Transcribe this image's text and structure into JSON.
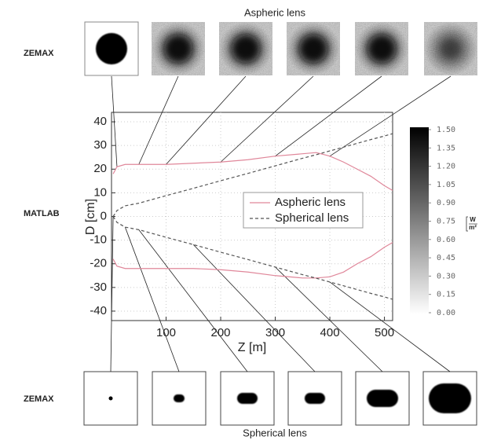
{
  "title_top": "Aspheric lens",
  "title_bottom": "Spherical lens",
  "row_labels": [
    "ZEMAX",
    "MATLAB",
    "ZEMAX"
  ],
  "chart_data": {
    "type": "line",
    "x_label": "Z [m]",
    "y_label": "D [cm]",
    "x": [
      3,
      10,
      25,
      50,
      100,
      150,
      200,
      250,
      300,
      350,
      375,
      400,
      425,
      450,
      475,
      500,
      515
    ],
    "series": [
      {
        "name": "Aspheric lens",
        "color": "#e0879a",
        "style": "solid",
        "upper": [
          18,
          21,
          22,
          22,
          22,
          22.5,
          23,
          24,
          25.5,
          26.5,
          27,
          25.5,
          23,
          20,
          17,
          13,
          11
        ],
        "lower": [
          -18,
          -21,
          -22,
          -22,
          -22,
          -22,
          -22.5,
          -23.5,
          -25,
          -26,
          -26,
          -25.5,
          -23.5,
          -20,
          -17,
          -13,
          -11
        ]
      },
      {
        "name": "Spherical lens",
        "color": "#555555",
        "style": "dashed",
        "upper": [
          0,
          2.5,
          4.5,
          5.6,
          8.8,
          11.9,
          15.1,
          18.2,
          21.4,
          24.6,
          26.1,
          27.7,
          29.3,
          30.9,
          32.5,
          34,
          35
        ],
        "lower": [
          0,
          -2.5,
          -4.5,
          -5.6,
          -8.8,
          -11.9,
          -15.1,
          -18.2,
          -21.4,
          -24.6,
          -26.1,
          -27.7,
          -29.3,
          -30.9,
          -32.5,
          -34,
          -35
        ]
      }
    ],
    "xlim": [
      0,
      515
    ],
    "ylim": [
      -44,
      44
    ],
    "xticks": [
      100,
      200,
      300,
      400,
      500
    ],
    "yticks": [
      -40,
      -30,
      -20,
      -10,
      0,
      10,
      20,
      30,
      40
    ],
    "grid": true,
    "legend": "center-right"
  },
  "colorbar": {
    "clim": [
      0,
      1.5
    ],
    "ticks": [
      {
        "value": 1.5,
        "label": "1.50"
      },
      1.35,
      {
        "value": 1.2,
        "label": "1.20"
      },
      1.05,
      {
        "value": 0.9,
        "label": "0.90"
      },
      0.75,
      {
        "value": 0.6,
        "label": "0.60"
      },
      0.45,
      {
        "value": 0.3,
        "label": "0.30"
      },
      0.15,
      {
        "value": 0,
        "label": "0.00"
      }
    ],
    "unit_numerator": "W",
    "unit_denominator": "m²"
  }
}
